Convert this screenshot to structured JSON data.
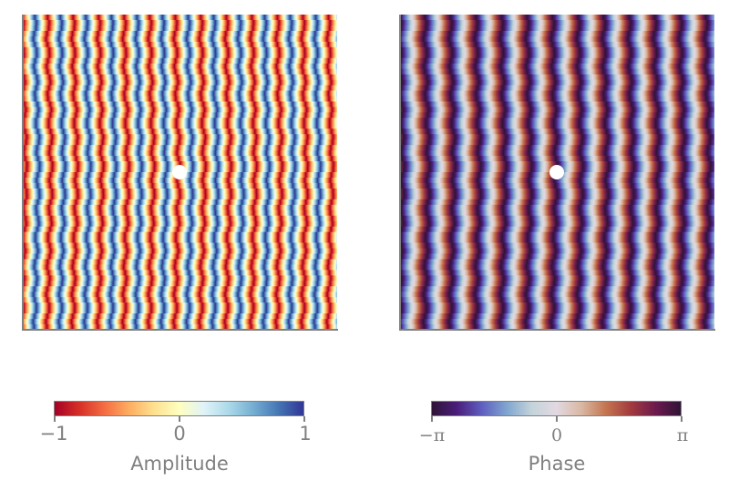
{
  "chart_data": [
    {
      "type": "heatmap",
      "title": "",
      "description": "Scattering of a plane wave (traveling horizontally) off a small circular obstacle at the center; real part of the field",
      "xlabel": "",
      "ylabel": "",
      "grid": false,
      "colormap": "RdYlBu",
      "colorbar": {
        "label": "Amplitude",
        "ticks": [
          "−1",
          "0",
          "1"
        ],
        "tick_values": [
          -1,
          0,
          1
        ],
        "range": [
          -1,
          1
        ],
        "orientation": "horizontal",
        "position": "below"
      },
      "wavelength_fraction_of_width": 0.081,
      "stripe_count_approx": 12.3,
      "obstacle": {
        "shape": "circle",
        "x_fraction": 0.5,
        "y_fraction": 0.5,
        "radius_px": 8,
        "color": "#ffffff"
      }
    },
    {
      "type": "heatmap",
      "title": "",
      "description": "Phase of the same scattered wave field",
      "xlabel": "",
      "ylabel": "",
      "grid": false,
      "colormap": "twilight_shifted",
      "colorbar": {
        "label": "Phase",
        "ticks": [
          "−π",
          "0",
          "π"
        ],
        "tick_values": [
          -3.14159,
          0,
          3.14159
        ],
        "range": [
          -3.14159,
          3.14159
        ],
        "orientation": "horizontal",
        "position": "below"
      },
      "wavelength_fraction_of_width": 0.081,
      "stripe_count_approx": 12.3,
      "obstacle": {
        "shape": "circle",
        "x_fraction": 0.5,
        "y_fraction": 0.5,
        "radius_px": 8,
        "color": "#ffffff"
      }
    }
  ],
  "colors": {
    "spine": "#808080",
    "text": "#808080",
    "amp_stops": [
      "#a50026",
      "#d73027",
      "#f46d43",
      "#fdae61",
      "#fee090",
      "#ffffbf",
      "#e0f3f8",
      "#abd9e9",
      "#74add1",
      "#4575b4",
      "#313695"
    ],
    "phase_stops": [
      "#2f1436",
      "#4a1d7a",
      "#5e5ec0",
      "#7fa5cf",
      "#c3d3da",
      "#e2d9e2",
      "#d9b8a4",
      "#c4744f",
      "#a23a3e",
      "#6c1a4e",
      "#2f1436"
    ]
  },
  "colorbars": {
    "amplitude": {
      "label": "Amplitude",
      "ticks": [
        "−1",
        "0",
        "1"
      ]
    },
    "phase": {
      "label": "Phase",
      "ticks": [
        "−π",
        "0",
        "π"
      ]
    }
  }
}
